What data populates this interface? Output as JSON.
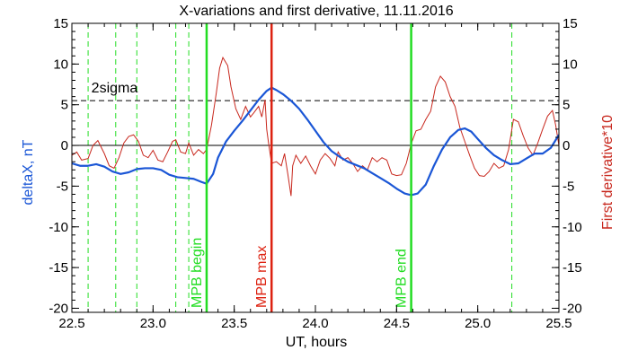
{
  "chart_data": {
    "type": "line",
    "title": "X-variations and first derivative, 11.11.2016",
    "xlabel": "UT, hours",
    "ylabel_left": "deltaX, nT",
    "ylabel_right": "First derivative*10",
    "xlim": [
      22.5,
      25.5
    ],
    "ylim": [
      -20.5,
      15
    ],
    "x_ticks": [
      "22.5",
      "23.0",
      "23.5",
      "24.0",
      "24.5",
      "25.0",
      "25.5"
    ],
    "y_ticks": [
      "15",
      "10",
      "5",
      "0",
      "-5",
      "-10",
      "-15",
      "-20"
    ],
    "colors": {
      "deltaX": "#1a56d6",
      "derivative": "#c8281e",
      "mpb_begin_end": "#22dd22",
      "mpb_max": "#dd2211",
      "dashed_markers": "#22dd22"
    },
    "threshold": {
      "label": "2sigma",
      "value": 5.5
    },
    "zero_line": 0,
    "vertical_markers": [
      {
        "x": 23.33,
        "label": "MPB begin",
        "style": "solid",
        "color": "#22dd22"
      },
      {
        "x": 23.73,
        "label": "MPB max",
        "style": "solid",
        "color": "#dd2211"
      },
      {
        "x": 24.59,
        "label": "MPB end",
        "style": "solid",
        "color": "#22dd22"
      }
    ],
    "dashed_verticals": [
      22.6,
      22.77,
      22.9,
      23.14,
      23.22,
      25.21
    ],
    "series": [
      {
        "key": "deltaX",
        "values": [
          [
            22.5,
            -2.2
          ],
          [
            22.55,
            -2.5
          ],
          [
            22.6,
            -2.5
          ],
          [
            22.65,
            -2.3
          ],
          [
            22.7,
            -2.6
          ],
          [
            22.75,
            -3.2
          ],
          [
            22.8,
            -3.5
          ],
          [
            22.85,
            -3.3
          ],
          [
            22.9,
            -2.9
          ],
          [
            22.95,
            -2.8
          ],
          [
            23.0,
            -2.8
          ],
          [
            23.05,
            -3.0
          ],
          [
            23.1,
            -3.6
          ],
          [
            23.15,
            -3.9
          ],
          [
            23.2,
            -4.0
          ],
          [
            23.25,
            -4.1
          ],
          [
            23.3,
            -4.5
          ],
          [
            23.33,
            -4.7
          ],
          [
            23.37,
            -3.5
          ],
          [
            23.4,
            -1.5
          ],
          [
            23.45,
            0.5
          ],
          [
            23.5,
            1.8
          ],
          [
            23.55,
            3.0
          ],
          [
            23.6,
            4.3
          ],
          [
            23.65,
            5.6
          ],
          [
            23.7,
            6.7
          ],
          [
            23.73,
            7.1
          ],
          [
            23.76,
            6.8
          ],
          [
            23.8,
            6.3
          ],
          [
            23.85,
            5.5
          ],
          [
            23.9,
            4.5
          ],
          [
            23.95,
            3.2
          ],
          [
            24.0,
            1.8
          ],
          [
            24.05,
            0.4
          ],
          [
            24.1,
            -0.7
          ],
          [
            24.15,
            -1.4
          ],
          [
            24.2,
            -2.0
          ],
          [
            24.25,
            -2.4
          ],
          [
            24.3,
            -2.8
          ],
          [
            24.35,
            -3.4
          ],
          [
            24.4,
            -4.0
          ],
          [
            24.45,
            -4.6
          ],
          [
            24.5,
            -5.3
          ],
          [
            24.55,
            -5.9
          ],
          [
            24.59,
            -6.1
          ],
          [
            24.63,
            -5.9
          ],
          [
            24.68,
            -4.8
          ],
          [
            24.73,
            -2.5
          ],
          [
            24.78,
            -0.5
          ],
          [
            24.83,
            1.0
          ],
          [
            24.88,
            1.9
          ],
          [
            24.92,
            2.1
          ],
          [
            24.96,
            1.7
          ],
          [
            25.0,
            0.8
          ],
          [
            25.05,
            -0.3
          ],
          [
            25.1,
            -1.2
          ],
          [
            25.15,
            -1.8
          ],
          [
            25.2,
            -2.3
          ],
          [
            25.25,
            -2.2
          ],
          [
            25.3,
            -1.6
          ],
          [
            25.35,
            -1.0
          ],
          [
            25.4,
            -1.0
          ],
          [
            25.45,
            -0.3
          ],
          [
            25.5,
            1.3
          ]
        ]
      },
      {
        "key": "derivative",
        "values": [
          [
            22.5,
            -1.2
          ],
          [
            22.53,
            -0.8
          ],
          [
            22.56,
            -1.8
          ],
          [
            22.6,
            -1.6
          ],
          [
            22.63,
            0.0
          ],
          [
            22.66,
            0.6
          ],
          [
            22.7,
            -1.0
          ],
          [
            22.73,
            -2.5
          ],
          [
            22.76,
            -2.8
          ],
          [
            22.79,
            -1.5
          ],
          [
            22.82,
            0.3
          ],
          [
            22.85,
            1.1
          ],
          [
            22.88,
            1.3
          ],
          [
            22.91,
            0.5
          ],
          [
            22.94,
            -1.2
          ],
          [
            22.97,
            -1.5
          ],
          [
            23.0,
            -0.6
          ],
          [
            23.03,
            -1.8
          ],
          [
            23.06,
            -2.0
          ],
          [
            23.09,
            -0.8
          ],
          [
            23.12,
            0.5
          ],
          [
            23.14,
            0.7
          ],
          [
            23.17,
            -0.8
          ],
          [
            23.2,
            -1.0
          ],
          [
            23.22,
            0.3
          ],
          [
            23.25,
            -1.2
          ],
          [
            23.28,
            -0.5
          ],
          [
            23.31,
            -1.0
          ],
          [
            23.33,
            -0.5
          ],
          [
            23.36,
            2.5
          ],
          [
            23.39,
            6.5
          ],
          [
            23.41,
            9.5
          ],
          [
            23.43,
            10.8
          ],
          [
            23.46,
            9.8
          ],
          [
            23.48,
            7.2
          ],
          [
            23.51,
            4.5
          ],
          [
            23.54,
            3.2
          ],
          [
            23.57,
            4.8
          ],
          [
            23.6,
            3.5
          ],
          [
            23.62,
            4.0
          ],
          [
            23.65,
            4.8
          ],
          [
            23.67,
            3.5
          ],
          [
            23.69,
            5.6
          ],
          [
            23.7,
            2.0
          ],
          [
            23.71,
            0.5
          ],
          [
            23.73,
            -2.2
          ],
          [
            23.76,
            -2.0
          ],
          [
            23.79,
            -2.5
          ],
          [
            23.81,
            -1.0
          ],
          [
            23.83,
            -3.5
          ],
          [
            23.85,
            -6.2
          ],
          [
            23.86,
            -2.5
          ],
          [
            23.88,
            -1.2
          ],
          [
            23.91,
            -2.2
          ],
          [
            23.94,
            -1.3
          ],
          [
            23.97,
            -2.5
          ],
          [
            24.0,
            -3.5
          ],
          [
            24.03,
            -1.8
          ],
          [
            24.06,
            -1.0
          ],
          [
            24.09,
            -1.6
          ],
          [
            24.12,
            -2.5
          ],
          [
            24.14,
            -0.8
          ],
          [
            24.17,
            -1.8
          ],
          [
            24.2,
            -1.5
          ],
          [
            24.23,
            -2.2
          ],
          [
            24.26,
            -3.2
          ],
          [
            24.29,
            -2.5
          ],
          [
            24.32,
            -3.0
          ],
          [
            24.35,
            -1.5
          ],
          [
            24.38,
            -2.0
          ],
          [
            24.41,
            -1.5
          ],
          [
            24.44,
            -1.8
          ],
          [
            24.47,
            -3.5
          ],
          [
            24.5,
            -3.7
          ],
          [
            24.53,
            -3.6
          ],
          [
            24.56,
            -2.2
          ],
          [
            24.59,
            0.2
          ],
          [
            24.62,
            1.8
          ],
          [
            24.65,
            2.0
          ],
          [
            24.68,
            3.2
          ],
          [
            24.71,
            4.2
          ],
          [
            24.74,
            7.2
          ],
          [
            24.77,
            8.5
          ],
          [
            24.8,
            7.8
          ],
          [
            24.83,
            6.0
          ],
          [
            24.86,
            4.8
          ],
          [
            24.89,
            2.2
          ],
          [
            24.92,
            0.5
          ],
          [
            24.95,
            -1.2
          ],
          [
            24.98,
            -2.8
          ],
          [
            25.01,
            -3.7
          ],
          [
            25.04,
            -3.8
          ],
          [
            25.07,
            -3.2
          ],
          [
            25.1,
            -2.2
          ],
          [
            25.13,
            -2.8
          ],
          [
            25.16,
            -2.5
          ],
          [
            25.19,
            -0.5
          ],
          [
            25.22,
            3.2
          ],
          [
            25.25,
            2.9
          ],
          [
            25.28,
            1.2
          ],
          [
            25.31,
            -0.3
          ],
          [
            25.34,
            -1.2
          ],
          [
            25.37,
            0.3
          ],
          [
            25.4,
            2.0
          ],
          [
            25.43,
            3.6
          ],
          [
            25.46,
            4.3
          ],
          [
            25.48,
            2.5
          ],
          [
            25.5,
            0.0
          ]
        ]
      }
    ]
  }
}
